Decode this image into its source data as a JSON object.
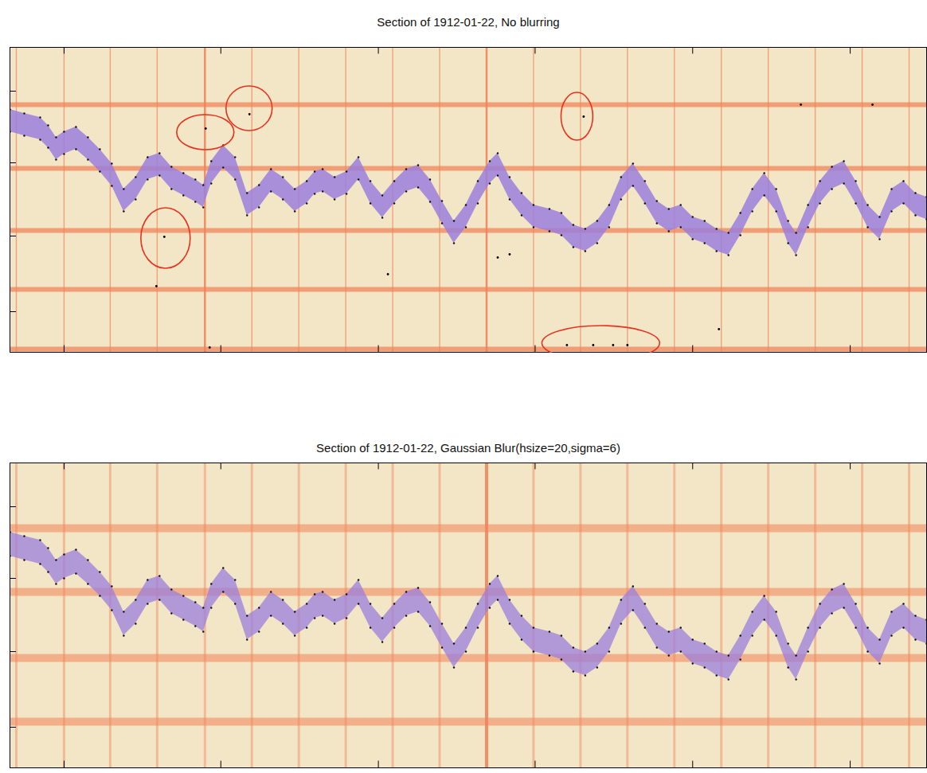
{
  "chart_data": [
    {
      "type": "line",
      "title": "Section of 1912-01-22, No blurring",
      "xlim": [
        0,
        1152
      ],
      "ylim": [
        0,
        383
      ],
      "xticks": [
        68,
        265,
        463,
        660,
        858,
        1056
      ],
      "yticks": [
        51,
        146,
        238,
        328
      ],
      "tick_labels": false,
      "grid": false,
      "rulings": {
        "color": "#f0845a",
        "x": [
          8,
          68,
          126,
          185,
          304,
          363,
          422,
          481,
          540,
          658,
          717,
          776,
          835,
          894,
          953,
          1012,
          1071,
          1130
        ],
        "x_bold": [
          245,
          599
        ],
        "y": [
          311,
          231,
          153,
          79,
          4
        ]
      },
      "series": [
        {
          "type": "area",
          "color": "#9b7fdc",
          "marker": "dot",
          "band": 14,
          "x": [
            0,
            18,
            38,
            48,
            58,
            68,
            83,
            98,
            113,
            128,
            143,
            158,
            173,
            188,
            203,
            218,
            233,
            243,
            253,
            268,
            283,
            298,
            313,
            328,
            343,
            358,
            373,
            383,
            393,
            408,
            423,
            438,
            453,
            468,
            483,
            498,
            513,
            528,
            543,
            558,
            573,
            588,
            603,
            613,
            628,
            643,
            658,
            678,
            693,
            708,
            723,
            738,
            753,
            768,
            783,
            798,
            813,
            828,
            843,
            858,
            873,
            888,
            903,
            918,
            933,
            948,
            963,
            978,
            988,
            1003,
            1018,
            1033,
            1048,
            1063,
            1078,
            1093,
            1108,
            1123,
            1138,
            1152
          ],
          "values": [
            291,
            286,
            281,
            271,
            256,
            263,
            269,
            256,
            241,
            223,
            191,
            206,
            231,
            236,
            219,
            211,
            203,
            196,
            226,
            246,
            231,
            186,
            196,
            216,
            206,
            191,
            201,
            213,
            216,
            206,
            213,
            231,
            201,
            183,
            201,
            216,
            221,
            203,
            176,
            151,
            171,
            201,
            226,
            236,
            206,
            186,
            171,
            166,
            161,
            146,
            141,
            151,
            171,
            206,
            223,
            201,
            176,
            166,
            171,
            156,
            151,
            141,
            136,
            161,
            191,
            211,
            191,
            151,
            136,
            171,
            201,
            219,
            226,
            201,
            171,
            156,
            191,
            201,
            186,
            181
          ]
        },
        {
          "type": "scatter",
          "color": "#000000",
          "x": [
            301,
            246,
            194,
            184,
            251,
            475,
            721,
            700,
            733,
            758,
            776,
            891,
            994,
            1084,
            613,
            628
          ],
          "values": [
            299,
            281,
            145,
            83,
            6,
            98,
            296,
            9,
            9,
            9,
            9,
            29,
            311,
            311,
            119,
            123
          ]
        }
      ],
      "highlights": {
        "color": "#e8321e",
        "items": [
          {
            "x": 246,
            "y": 276,
            "rx": 36,
            "ry": 22
          },
          {
            "x": 301,
            "y": 306,
            "rx": 29,
            "ry": 28
          },
          {
            "x": 196,
            "y": 143,
            "rx": 31,
            "ry": 38
          },
          {
            "x": 713,
            "y": 296,
            "rx": 20,
            "ry": 30
          },
          {
            "x": 743,
            "y": 11,
            "rx": 74,
            "ry": 22
          }
        ]
      }
    },
    {
      "type": "line",
      "title": "Section of 1912-01-22, Gaussian Blur(hsize=20,sigma=6)",
      "xlim": [
        0,
        1152
      ],
      "ylim": [
        0,
        383
      ],
      "xticks": [
        68,
        265,
        463,
        660,
        858,
        1056
      ],
      "yticks": [
        51,
        146,
        238,
        328
      ],
      "tick_labels": false,
      "grid": false,
      "rulings": {
        "color": "#f0845a",
        "x": [
          8,
          68,
          126,
          185,
          245,
          304,
          363,
          422,
          481,
          540,
          658,
          717,
          776,
          835,
          894,
          953,
          1012,
          1071,
          1130
        ],
        "x_bold": [
          599
        ],
        "y": [
          301,
          221,
          138,
          58
        ]
      },
      "series": [
        {
          "type": "area",
          "color": "#9b7fdc",
          "marker": "dot",
          "band": 15,
          "x": [
            0,
            18,
            38,
            48,
            58,
            68,
            83,
            98,
            113,
            128,
            143,
            158,
            173,
            188,
            203,
            218,
            233,
            243,
            253,
            268,
            283,
            298,
            313,
            328,
            343,
            358,
            373,
            383,
            393,
            408,
            423,
            438,
            453,
            468,
            483,
            498,
            513,
            528,
            543,
            558,
            573,
            588,
            603,
            613,
            628,
            643,
            658,
            678,
            693,
            708,
            723,
            738,
            753,
            768,
            783,
            798,
            813,
            828,
            843,
            858,
            873,
            888,
            903,
            918,
            933,
            948,
            963,
            978,
            988,
            1003,
            1018,
            1033,
            1048,
            1063,
            1078,
            1093,
            1108,
            1123,
            1138,
            1152
          ],
          "values": [
            281,
            276,
            271,
            261,
            246,
            253,
            259,
            246,
            231,
            213,
            181,
            196,
            221,
            226,
            209,
            201,
            193,
            186,
            216,
            236,
            221,
            176,
            186,
            206,
            196,
            181,
            191,
            203,
            206,
            196,
            203,
            221,
            191,
            173,
            191,
            206,
            211,
            193,
            166,
            141,
            161,
            191,
            216,
            226,
            196,
            176,
            161,
            156,
            151,
            136,
            131,
            141,
            161,
            196,
            213,
            191,
            166,
            156,
            161,
            146,
            141,
            131,
            126,
            151,
            181,
            201,
            181,
            141,
            126,
            161,
            191,
            209,
            216,
            191,
            161,
            146,
            181,
            191,
            176,
            171
          ]
        }
      ]
    }
  ]
}
